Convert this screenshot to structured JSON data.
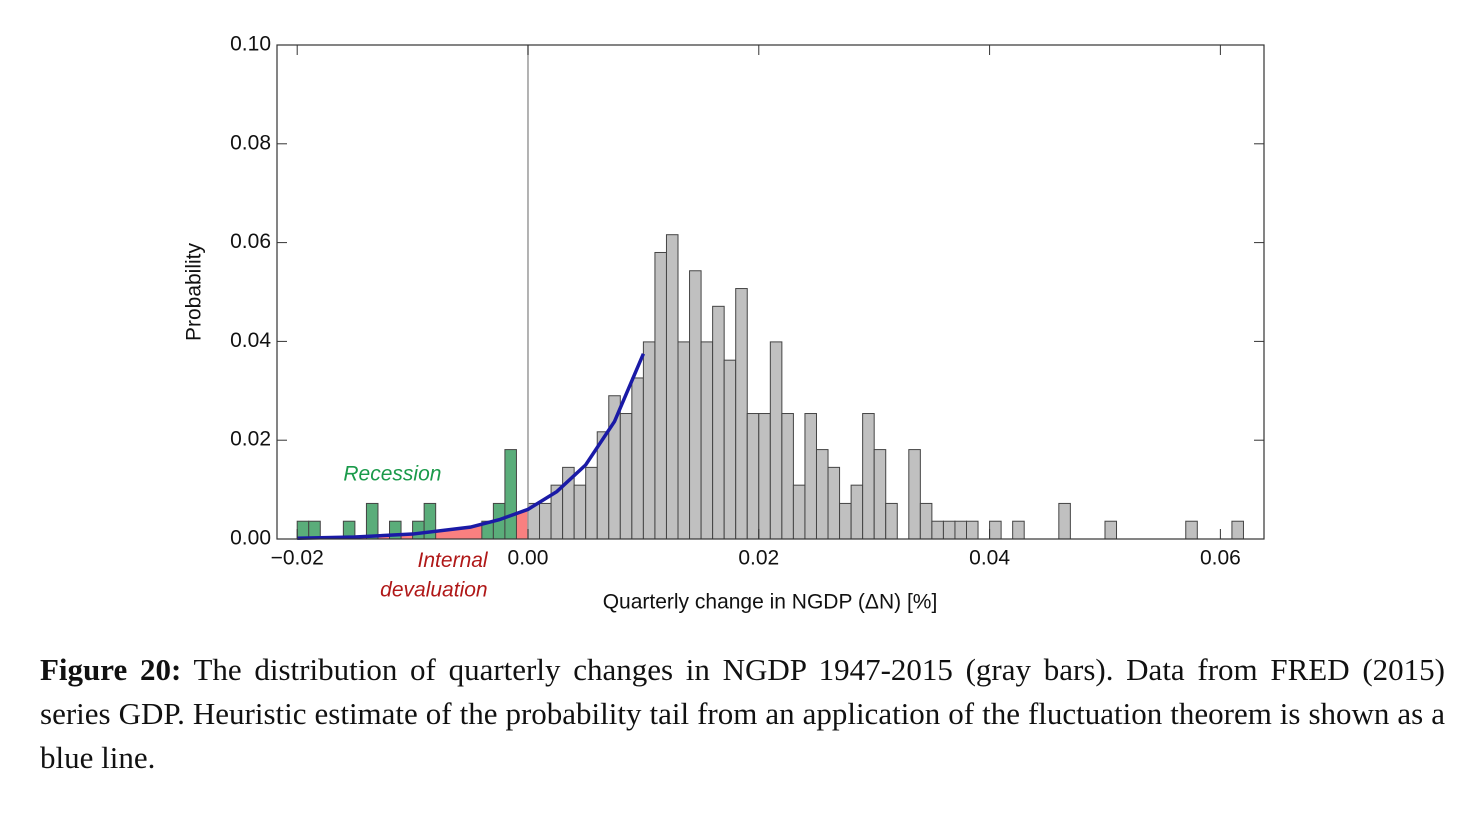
{
  "chart_data": {
    "type": "histogram",
    "xlabel": "Quarterly change in NGDP (ΔN) [%]",
    "ylabel": "Probability",
    "bins": [
      -0.02,
      -0.019,
      -0.018,
      -0.017,
      -0.016,
      -0.015,
      -0.014,
      -0.013,
      -0.012,
      -0.011,
      -0.01,
      -0.009,
      -0.008,
      -0.007,
      -0.006,
      -0.005,
      -0.004,
      -0.003,
      -0.002,
      -0.001,
      0.0,
      0.001,
      0.002,
      0.003,
      0.004,
      0.005,
      0.006,
      0.007,
      0.008,
      0.009,
      0.01,
      0.011,
      0.012,
      0.013,
      0.014,
      0.015,
      0.016,
      0.017,
      0.018,
      0.019,
      0.02,
      0.021,
      0.022,
      0.023,
      0.024,
      0.025,
      0.026,
      0.027,
      0.028,
      0.029,
      0.03,
      0.031,
      0.032,
      0.033,
      0.034,
      0.035,
      0.036,
      0.037,
      0.038,
      0.039,
      0.04,
      0.041,
      0.042,
      0.043,
      0.044,
      0.045,
      0.046,
      0.047,
      0.048,
      0.049,
      0.05,
      0.051,
      0.052,
      0.053,
      0.054,
      0.055,
      0.056,
      0.057,
      0.058,
      0.059,
      0.06,
      0.061,
      0.062
    ],
    "values": [
      0.0036,
      0.0036,
      0,
      0,
      0.0036,
      0,
      0.0072,
      0,
      0.0036,
      0,
      0.0036,
      0.0072,
      0,
      0,
      0,
      0,
      0.0036,
      0.0072,
      0.0181,
      0,
      0.0072,
      0.0072,
      0.0109,
      0.0145,
      0.0109,
      0.0145,
      0.0217,
      0.029,
      0.0254,
      0.0326,
      0.0399,
      0.058,
      0.0616,
      0.0399,
      0.0543,
      0.0399,
      0.0471,
      0.0362,
      0.0507,
      0.0254,
      0.0254,
      0.0399,
      0.0254,
      0.0109,
      0.0254,
      0.0181,
      0.0145,
      0.0072,
      0.0109,
      0.0254,
      0.0181,
      0.0072,
      0,
      0.0181,
      0.0072,
      0.0036,
      0.0036,
      0.0036,
      0.0036,
      0,
      0.0036,
      0,
      0.0036,
      0,
      0,
      0,
      0.0072,
      0,
      0,
      0,
      0.0036,
      0,
      0,
      0,
      0,
      0,
      0,
      0.0036,
      0,
      0,
      0,
      0.0036
    ],
    "color": "#c0c0c0",
    "negative_color": "#5aad7a",
    "curve": {
      "color": "#1a1aa6",
      "fill_color": "#f86a6a",
      "x": [
        -0.02,
        -0.015,
        -0.01,
        -0.005,
        -0.0025,
        0,
        0.0025,
        0.005,
        0.0075,
        0.01
      ],
      "y": [
        0.00016,
        0.0004,
        0.001,
        0.0024,
        0.0039,
        0.006,
        0.0096,
        0.015,
        0.0238,
        0.0375
      ]
    },
    "annotations": [
      {
        "text": "Recession",
        "x": -0.0075,
        "y": 0.013,
        "color": "#1a9a4a"
      },
      {
        "text": "Internal",
        "x": -0.0035,
        "y": -0.0045,
        "color": "#b01818"
      },
      {
        "text": "devaluation",
        "x": -0.0035,
        "y": -0.0105,
        "color": "#b01818"
      }
    ],
    "zero_line": true,
    "xlim": [
      -0.02175,
      0.06378
    ],
    "ylim": [
      0,
      0.1
    ],
    "xticks": [
      {
        "value": -0.02,
        "label": "−0.02"
      },
      {
        "value": 0,
        "label": "0.00"
      },
      {
        "value": 0.02,
        "label": "0.02"
      },
      {
        "value": 0.04,
        "label": "0.04"
      },
      {
        "value": 0.06,
        "label": "0.06"
      }
    ],
    "yticks": [
      {
        "value": 0,
        "label": "0.00"
      },
      {
        "value": 0.02,
        "label": "0.02"
      },
      {
        "value": 0.04,
        "label": "0.04"
      },
      {
        "value": 0.06,
        "label": "0.06"
      },
      {
        "value": 0.08,
        "label": "0.08"
      },
      {
        "value": 0.1,
        "label": "0.10"
      }
    ]
  },
  "caption": {
    "label": "Figure 20:",
    "text": "The distribution of quarterly changes in NGDP 1947-2015 (gray bars). Data from FRED (2015) series GDP. Heuristic estimate of the probability tail from an application of the fluctuation theorem is shown as a blue line."
  }
}
